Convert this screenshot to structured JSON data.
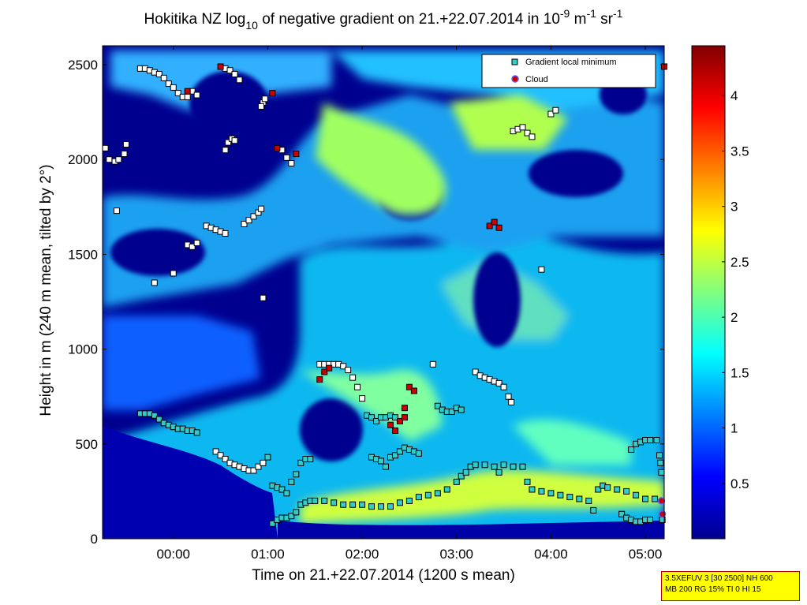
{
  "chart_data": {
    "type": "heatmap",
    "title": {
      "prefix": "Hokitika NZ log",
      "sub": "10",
      "middle": " of negative gradient on 21.+22.07.2014 in 10",
      "exp1": "-9",
      "unit1": " m",
      "exp2": "-1",
      "unit2": " sr",
      "exp3": "-1"
    },
    "xlabel": "Time on 21.+22.07.2014 (1200 s mean)",
    "ylabel": "Height in m (240 m mean, tilted by 2°)",
    "xlim": [
      -0.75,
      5.2
    ],
    "ylim": [
      0,
      2600
    ],
    "x_ticks": [
      {
        "v": 0,
        "label": "00:00"
      },
      {
        "v": 1,
        "label": "01:00"
      },
      {
        "v": 2,
        "label": "02:00"
      },
      {
        "v": 3,
        "label": "03:00"
      },
      {
        "v": 4,
        "label": "04:00"
      },
      {
        "v": 5,
        "label": "05:00"
      }
    ],
    "y_ticks": [
      {
        "v": 0,
        "label": "0"
      },
      {
        "v": 500,
        "label": "500"
      },
      {
        "v": 1000,
        "label": "1000"
      },
      {
        "v": 1500,
        "label": "1500"
      },
      {
        "v": 2000,
        "label": "2000"
      },
      {
        "v": 2500,
        "label": "2500"
      }
    ],
    "colorbar": {
      "range": [
        0,
        4.45
      ],
      "ticks": [
        {
          "v": 0.5,
          "label": "0.5"
        },
        {
          "v": 1,
          "label": "1"
        },
        {
          "v": 1.5,
          "label": "1.5"
        },
        {
          "v": 2,
          "label": "2"
        },
        {
          "v": 2.5,
          "label": "2.5"
        },
        {
          "v": 3,
          "label": "3"
        },
        {
          "v": 3.5,
          "label": "3.5"
        },
        {
          "v": 4,
          "label": "4"
        }
      ]
    },
    "legend": {
      "placement": "top-right",
      "entries": [
        {
          "name": "Gradient local minimum",
          "marker": "square",
          "color": "#33cccc"
        },
        {
          "name": "Cloud",
          "marker": "circle",
          "color": "#cc0000"
        }
      ]
    },
    "series": [
      {
        "name": "Gradient local minimum",
        "points": [
          [
            -0.72,
            2060
          ],
          [
            -0.68,
            2000
          ],
          [
            -0.62,
            1990
          ],
          [
            -0.58,
            2000
          ],
          [
            -0.5,
            2080
          ],
          [
            -0.52,
            2030
          ],
          [
            -0.6,
            1730
          ],
          [
            -0.35,
            2480
          ],
          [
            -0.3,
            2480
          ],
          [
            -0.25,
            2470
          ],
          [
            -0.2,
            2460
          ],
          [
            -0.15,
            2450
          ],
          [
            -0.1,
            2430
          ],
          [
            -0.05,
            2400
          ],
          [
            0,
            2380
          ],
          [
            0.05,
            2350
          ],
          [
            0.1,
            2330
          ],
          [
            0.15,
            2330
          ],
          [
            0.2,
            2360
          ],
          [
            0.25,
            2340
          ],
          [
            0.55,
            2480
          ],
          [
            0.6,
            2470
          ],
          [
            0.65,
            2450
          ],
          [
            0.7,
            2420
          ],
          [
            0.95,
            2300
          ],
          [
            0.93,
            2280
          ],
          [
            0.97,
            2320
          ],
          [
            1.15,
            2050
          ],
          [
            1.2,
            2010
          ],
          [
            1.25,
            1980
          ],
          [
            0.55,
            2050
          ],
          [
            0.58,
            2090
          ],
          [
            0.62,
            2110
          ],
          [
            0.65,
            2100
          ],
          [
            0.35,
            1650
          ],
          [
            0.4,
            1640
          ],
          [
            0.45,
            1630
          ],
          [
            0.5,
            1620
          ],
          [
            0.55,
            1610
          ],
          [
            0.75,
            1660
          ],
          [
            0.8,
            1680
          ],
          [
            0.85,
            1700
          ],
          [
            0.9,
            1720
          ],
          [
            0.93,
            1740
          ],
          [
            0.15,
            1550
          ],
          [
            0.2,
            1540
          ],
          [
            0.25,
            1560
          ],
          [
            0,
            1400
          ],
          [
            -0.2,
            1350
          ],
          [
            0.95,
            1270
          ],
          [
            3.6,
            2150
          ],
          [
            3.65,
            2160
          ],
          [
            3.7,
            2170
          ],
          [
            3.75,
            2140
          ],
          [
            3.8,
            2120
          ],
          [
            4.0,
            2240
          ],
          [
            4.05,
            2260
          ],
          [
            3.9,
            1420
          ],
          [
            2.75,
            920
          ],
          [
            -0.35,
            660
          ],
          [
            -0.3,
            660
          ],
          [
            -0.25,
            660
          ],
          [
            -0.2,
            650
          ],
          [
            -0.15,
            630
          ],
          [
            -0.1,
            610
          ],
          [
            -0.05,
            600
          ],
          [
            0,
            590
          ],
          [
            0.05,
            580
          ],
          [
            0.1,
            580
          ],
          [
            0.15,
            570
          ],
          [
            0.2,
            570
          ],
          [
            0.25,
            560
          ],
          [
            0.45,
            460
          ],
          [
            0.5,
            440
          ],
          [
            0.55,
            420
          ],
          [
            0.6,
            400
          ],
          [
            0.65,
            390
          ],
          [
            0.7,
            380
          ],
          [
            0.75,
            370
          ],
          [
            0.8,
            360
          ],
          [
            0.85,
            360
          ],
          [
            0.9,
            380
          ],
          [
            0.95,
            400
          ],
          [
            1.0,
            430
          ],
          [
            1.05,
            280
          ],
          [
            1.1,
            270
          ],
          [
            1.15,
            260
          ],
          [
            1.2,
            240
          ],
          [
            1.25,
            300
          ],
          [
            1.3,
            340
          ],
          [
            1.35,
            400
          ],
          [
            1.4,
            420
          ],
          [
            1.45,
            420
          ],
          [
            1.55,
            920
          ],
          [
            1.6,
            920
          ],
          [
            1.65,
            920
          ],
          [
            1.7,
            920
          ],
          [
            1.75,
            920
          ],
          [
            1.8,
            910
          ],
          [
            1.85,
            890
          ],
          [
            1.9,
            850
          ],
          [
            1.95,
            800
          ],
          [
            2.0,
            740
          ],
          [
            2.05,
            650
          ],
          [
            2.1,
            640
          ],
          [
            2.15,
            620
          ],
          [
            2.2,
            640
          ],
          [
            2.25,
            640
          ],
          [
            2.3,
            650
          ],
          [
            2.35,
            640
          ],
          [
            2.1,
            430
          ],
          [
            2.15,
            420
          ],
          [
            2.2,
            410
          ],
          [
            2.25,
            380
          ],
          [
            2.3,
            430
          ],
          [
            2.35,
            440
          ],
          [
            2.4,
            460
          ],
          [
            2.45,
            480
          ],
          [
            2.5,
            470
          ],
          [
            2.55,
            460
          ],
          [
            2.6,
            450
          ],
          [
            2.8,
            700
          ],
          [
            2.85,
            680
          ],
          [
            2.9,
            670
          ],
          [
            2.95,
            670
          ],
          [
            3.0,
            690
          ],
          [
            3.05,
            680
          ],
          [
            3.2,
            880
          ],
          [
            3.25,
            860
          ],
          [
            3.3,
            850
          ],
          [
            3.35,
            840
          ],
          [
            3.4,
            830
          ],
          [
            3.45,
            820
          ],
          [
            3.5,
            800
          ],
          [
            3.55,
            750
          ],
          [
            3.58,
            720
          ],
          [
            1.05,
            80
          ],
          [
            1.1,
            100
          ],
          [
            1.15,
            110
          ],
          [
            1.2,
            110
          ],
          [
            1.25,
            120
          ],
          [
            1.3,
            140
          ],
          [
            1.35,
            180
          ],
          [
            1.4,
            190
          ],
          [
            1.45,
            200
          ],
          [
            1.5,
            200
          ],
          [
            1.6,
            200
          ],
          [
            1.7,
            190
          ],
          [
            1.8,
            180
          ],
          [
            1.9,
            180
          ],
          [
            2.0,
            180
          ],
          [
            2.1,
            170
          ],
          [
            2.2,
            170
          ],
          [
            2.3,
            170
          ],
          [
            2.4,
            190
          ],
          [
            2.5,
            200
          ],
          [
            2.6,
            220
          ],
          [
            2.7,
            230
          ],
          [
            2.8,
            240
          ],
          [
            2.9,
            260
          ],
          [
            3.0,
            300
          ],
          [
            3.05,
            330
          ],
          [
            3.1,
            350
          ],
          [
            3.15,
            380
          ],
          [
            3.2,
            390
          ],
          [
            3.3,
            390
          ],
          [
            3.4,
            380
          ],
          [
            3.45,
            350
          ],
          [
            3.5,
            390
          ],
          [
            3.6,
            380
          ],
          [
            3.7,
            380
          ],
          [
            3.75,
            300
          ],
          [
            3.8,
            260
          ],
          [
            3.9,
            250
          ],
          [
            4.0,
            240
          ],
          [
            4.1,
            230
          ],
          [
            4.2,
            220
          ],
          [
            4.3,
            210
          ],
          [
            4.4,
            200
          ],
          [
            4.45,
            150
          ],
          [
            4.5,
            260
          ],
          [
            4.55,
            280
          ],
          [
            4.6,
            270
          ],
          [
            4.7,
            260
          ],
          [
            4.8,
            250
          ],
          [
            4.9,
            230
          ],
          [
            5.0,
            210
          ],
          [
            5.1,
            210
          ],
          [
            4.75,
            130
          ],
          [
            4.8,
            110
          ],
          [
            4.85,
            100
          ],
          [
            4.9,
            90
          ],
          [
            4.95,
            90
          ],
          [
            5.0,
            100
          ],
          [
            5.05,
            100
          ],
          [
            4.85,
            470
          ],
          [
            4.9,
            500
          ],
          [
            4.95,
            510
          ],
          [
            5.0,
            520
          ],
          [
            5.05,
            520
          ],
          [
            5.12,
            520
          ],
          [
            5.15,
            440
          ],
          [
            5.16,
            400
          ],
          [
            5.17,
            350
          ],
          [
            5.18,
            100
          ]
        ]
      },
      {
        "name": "Cloud",
        "points": [
          [
            0.15,
            2360
          ],
          [
            0.5,
            2490
          ],
          [
            1.05,
            2350
          ],
          [
            1.1,
            2060
          ],
          [
            1.3,
            2030
          ],
          [
            3.35,
            1650
          ],
          [
            3.4,
            1670
          ],
          [
            3.45,
            1640
          ],
          [
            1.55,
            840
          ],
          [
            1.6,
            880
          ],
          [
            1.65,
            900
          ],
          [
            2.3,
            600
          ],
          [
            2.35,
            570
          ],
          [
            2.4,
            620
          ],
          [
            2.45,
            640
          ],
          [
            2.5,
            800
          ],
          [
            2.55,
            780
          ],
          [
            2.45,
            690
          ],
          [
            5.17,
            200
          ],
          [
            5.18,
            130
          ],
          [
            5.2,
            2490
          ]
        ]
      }
    ]
  },
  "infobox": {
    "line1": "3.5XEFUV 3 [30 2500] NH 600",
    "line2": "MB 200 RG 15% TI 0 HI 15"
  }
}
